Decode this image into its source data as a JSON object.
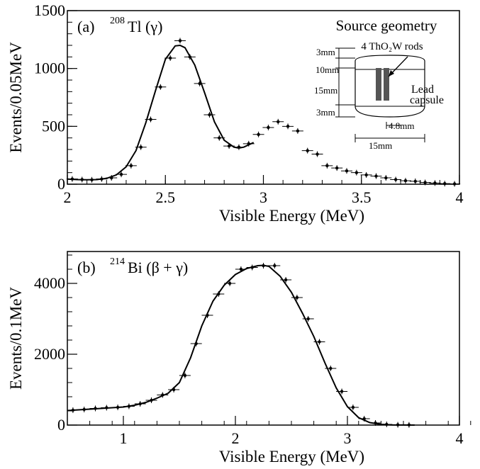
{
  "chart_data": [
    {
      "type": "scatter",
      "panel_label": "(a)",
      "isotope_mass": "208",
      "isotope_name": "Tl (γ)",
      "xlabel": "Visible Energy (MeV)",
      "ylabel": "Events/0.05MeV",
      "xlim": [
        2,
        4
      ],
      "ylim": [
        0,
        1500
      ],
      "x_ticks": [
        "2",
        "2.5",
        "3",
        "3.5",
        "4"
      ],
      "y_ticks": [
        "0",
        "500",
        "1000",
        "1500"
      ],
      "grid": false,
      "points": {
        "x": [
          2.025,
          2.075,
          2.125,
          2.175,
          2.225,
          2.275,
          2.325,
          2.375,
          2.425,
          2.475,
          2.525,
          2.575,
          2.625,
          2.675,
          2.725,
          2.775,
          2.825,
          2.875,
          2.925,
          2.975,
          3.025,
          3.075,
          3.125,
          3.175,
          3.225,
          3.275,
          3.325,
          3.375,
          3.425,
          3.475,
          3.525,
          3.575,
          3.625,
          3.675,
          3.725,
          3.775,
          3.825,
          3.875,
          3.925,
          3.975
        ],
        "y": [
          45,
          40,
          38,
          45,
          55,
          85,
          160,
          320,
          560,
          840,
          1090,
          1240,
          1100,
          870,
          600,
          400,
          330,
          320,
          350,
          430,
          490,
          540,
          500,
          460,
          290,
          260,
          160,
          140,
          115,
          100,
          80,
          70,
          55,
          40,
          30,
          25,
          15,
          10,
          5,
          3
        ]
      },
      "fit_curve": {
        "x": [
          2.0,
          2.05,
          2.1,
          2.15,
          2.2,
          2.25,
          2.3,
          2.35,
          2.4,
          2.45,
          2.5,
          2.55,
          2.575,
          2.6,
          2.65,
          2.7,
          2.75,
          2.8,
          2.85,
          2.875,
          2.9,
          2.95
        ],
        "y": [
          45,
          40,
          38,
          40,
          50,
          80,
          150,
          290,
          530,
          810,
          1080,
          1195,
          1200,
          1180,
          1030,
          790,
          540,
          380,
          320,
          312,
          320,
          360
        ]
      },
      "inset": {
        "title": "Source geometry",
        "rods_label": "4 ThO₂W rods",
        "capsule_label": [
          "Lead",
          "capsule"
        ],
        "dimensions": [
          "3mm",
          "10mm",
          "15mm",
          "3mm",
          "4.8mm",
          "15mm"
        ]
      }
    },
    {
      "type": "scatter",
      "panel_label": "(b)",
      "isotope_mass": "214",
      "isotope_name": "Bi (β + γ)",
      "xlabel": "Visible Energy (MeV)",
      "ylabel": "Events/0.1MeV",
      "xlim": [
        0.5,
        4
      ],
      "ylim": [
        0,
        4900
      ],
      "x_ticks": [
        "1",
        "2",
        "3",
        "4"
      ],
      "y_ticks": [
        "0",
        "2000",
        "4000"
      ],
      "grid": false,
      "points": {
        "x": [
          0.55,
          0.65,
          0.75,
          0.85,
          0.95,
          1.05,
          1.15,
          1.25,
          1.35,
          1.45,
          1.55,
          1.65,
          1.75,
          1.85,
          1.95,
          2.05,
          2.15,
          2.25,
          2.35,
          2.45,
          2.55,
          2.65,
          2.75,
          2.85,
          2.95,
          3.05,
          3.15,
          3.25,
          3.35,
          3.45,
          3.55
        ],
        "y": [
          420,
          440,
          470,
          490,
          500,
          530,
          600,
          700,
          850,
          1000,
          1400,
          2300,
          3100,
          3700,
          4000,
          4400,
          4450,
          4500,
          4500,
          4100,
          3600,
          3000,
          2350,
          1600,
          950,
          500,
          180,
          60,
          20,
          8,
          5
        ]
      },
      "fit_curve": {
        "x": [
          0.5,
          0.6,
          0.7,
          0.8,
          0.9,
          1.0,
          1.1,
          1.2,
          1.3,
          1.4,
          1.5,
          1.6,
          1.7,
          1.8,
          1.9,
          2.0,
          2.1,
          2.2,
          2.25,
          2.3,
          2.4,
          2.5,
          2.6,
          2.7,
          2.8,
          2.9,
          3.0,
          3.1,
          3.2,
          3.3,
          3.4,
          3.5,
          3.6
        ],
        "y": [
          410,
          430,
          450,
          470,
          490,
          510,
          560,
          640,
          760,
          900,
          1200,
          1900,
          2800,
          3500,
          3950,
          4250,
          4420,
          4500,
          4510,
          4480,
          4200,
          3750,
          3150,
          2500,
          1750,
          1050,
          520,
          210,
          70,
          20,
          6,
          2,
          0
        ]
      }
    }
  ]
}
